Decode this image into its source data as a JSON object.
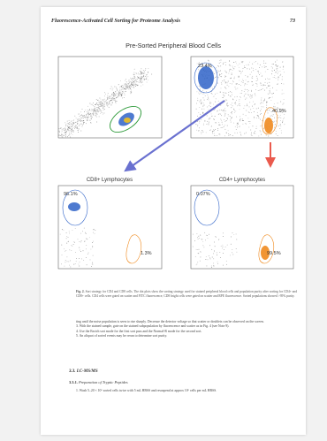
{
  "running_head": {
    "title": "Fluorescence-Activated Cell Sorting for Proteome Analysis",
    "page_number": "73"
  },
  "figure": {
    "top_title": "Pre-Sorted Peripheral Blood Cells",
    "panels": [
      {
        "title": "",
        "gate_labels": []
      },
      {
        "title": "",
        "gate_labels": [
          "23.4%",
          "40.9%"
        ]
      },
      {
        "title": "CD8+ Lymphocytes",
        "gate_labels": [
          "96.1%",
          "1.3%"
        ]
      },
      {
        "title": "CD4+ Lymphocytes",
        "gate_labels": [
          "0.07%",
          "99.5%"
        ]
      }
    ],
    "colors": {
      "cd8_arrow": "#6a71d0",
      "cd4_arrow": "#ea5a4d",
      "cd8_population": "#2f63c8",
      "cd4_population": "#f08a1e",
      "lymphocyte_gate": "#2e9a3a",
      "dot_gray": "#6d6d6d"
    }
  },
  "caption": {
    "label": "Fig. 2.",
    "text": "Sort strategy for CD4 and CD8 cells. The dot plots show the sorting strategy used for stained peripheral blood cells and population purity after sorting for CD4+ and CD8+ cells. CD4 cells were gated on scatter and FITC fluorescence, CD8 bright cells were gated on scatter and RPE fluorescence. Sorted populations showed >95% purity."
  },
  "body": {
    "continuation": "ting until the noise population is seen to rise sharply. Decrease the detector voltage so that scatter or doublets can be observed on the screen.",
    "items": [
      "3.  With the stained sample, gate on the stained subpopulation by fluorescence and scatter as in Fig. 4 (see Note 9).",
      "4.  Use the Enrich sort mode for the first sort pass and the Normal-R mode for the second sort.",
      "5.  An aliquot of sorted events may be rerun to determine sort purity."
    ],
    "section_heading": "3.3. LC-MS/MS",
    "subsection_number": "3.3.1.",
    "subsection_title": "Preparation of Tryptic Peptides",
    "step": "1.  Wash 5–20 × 10⁶ sorted cells twice with 5 mL HBSS and resuspend at approx 10⁶ cells per mL HBSS."
  }
}
